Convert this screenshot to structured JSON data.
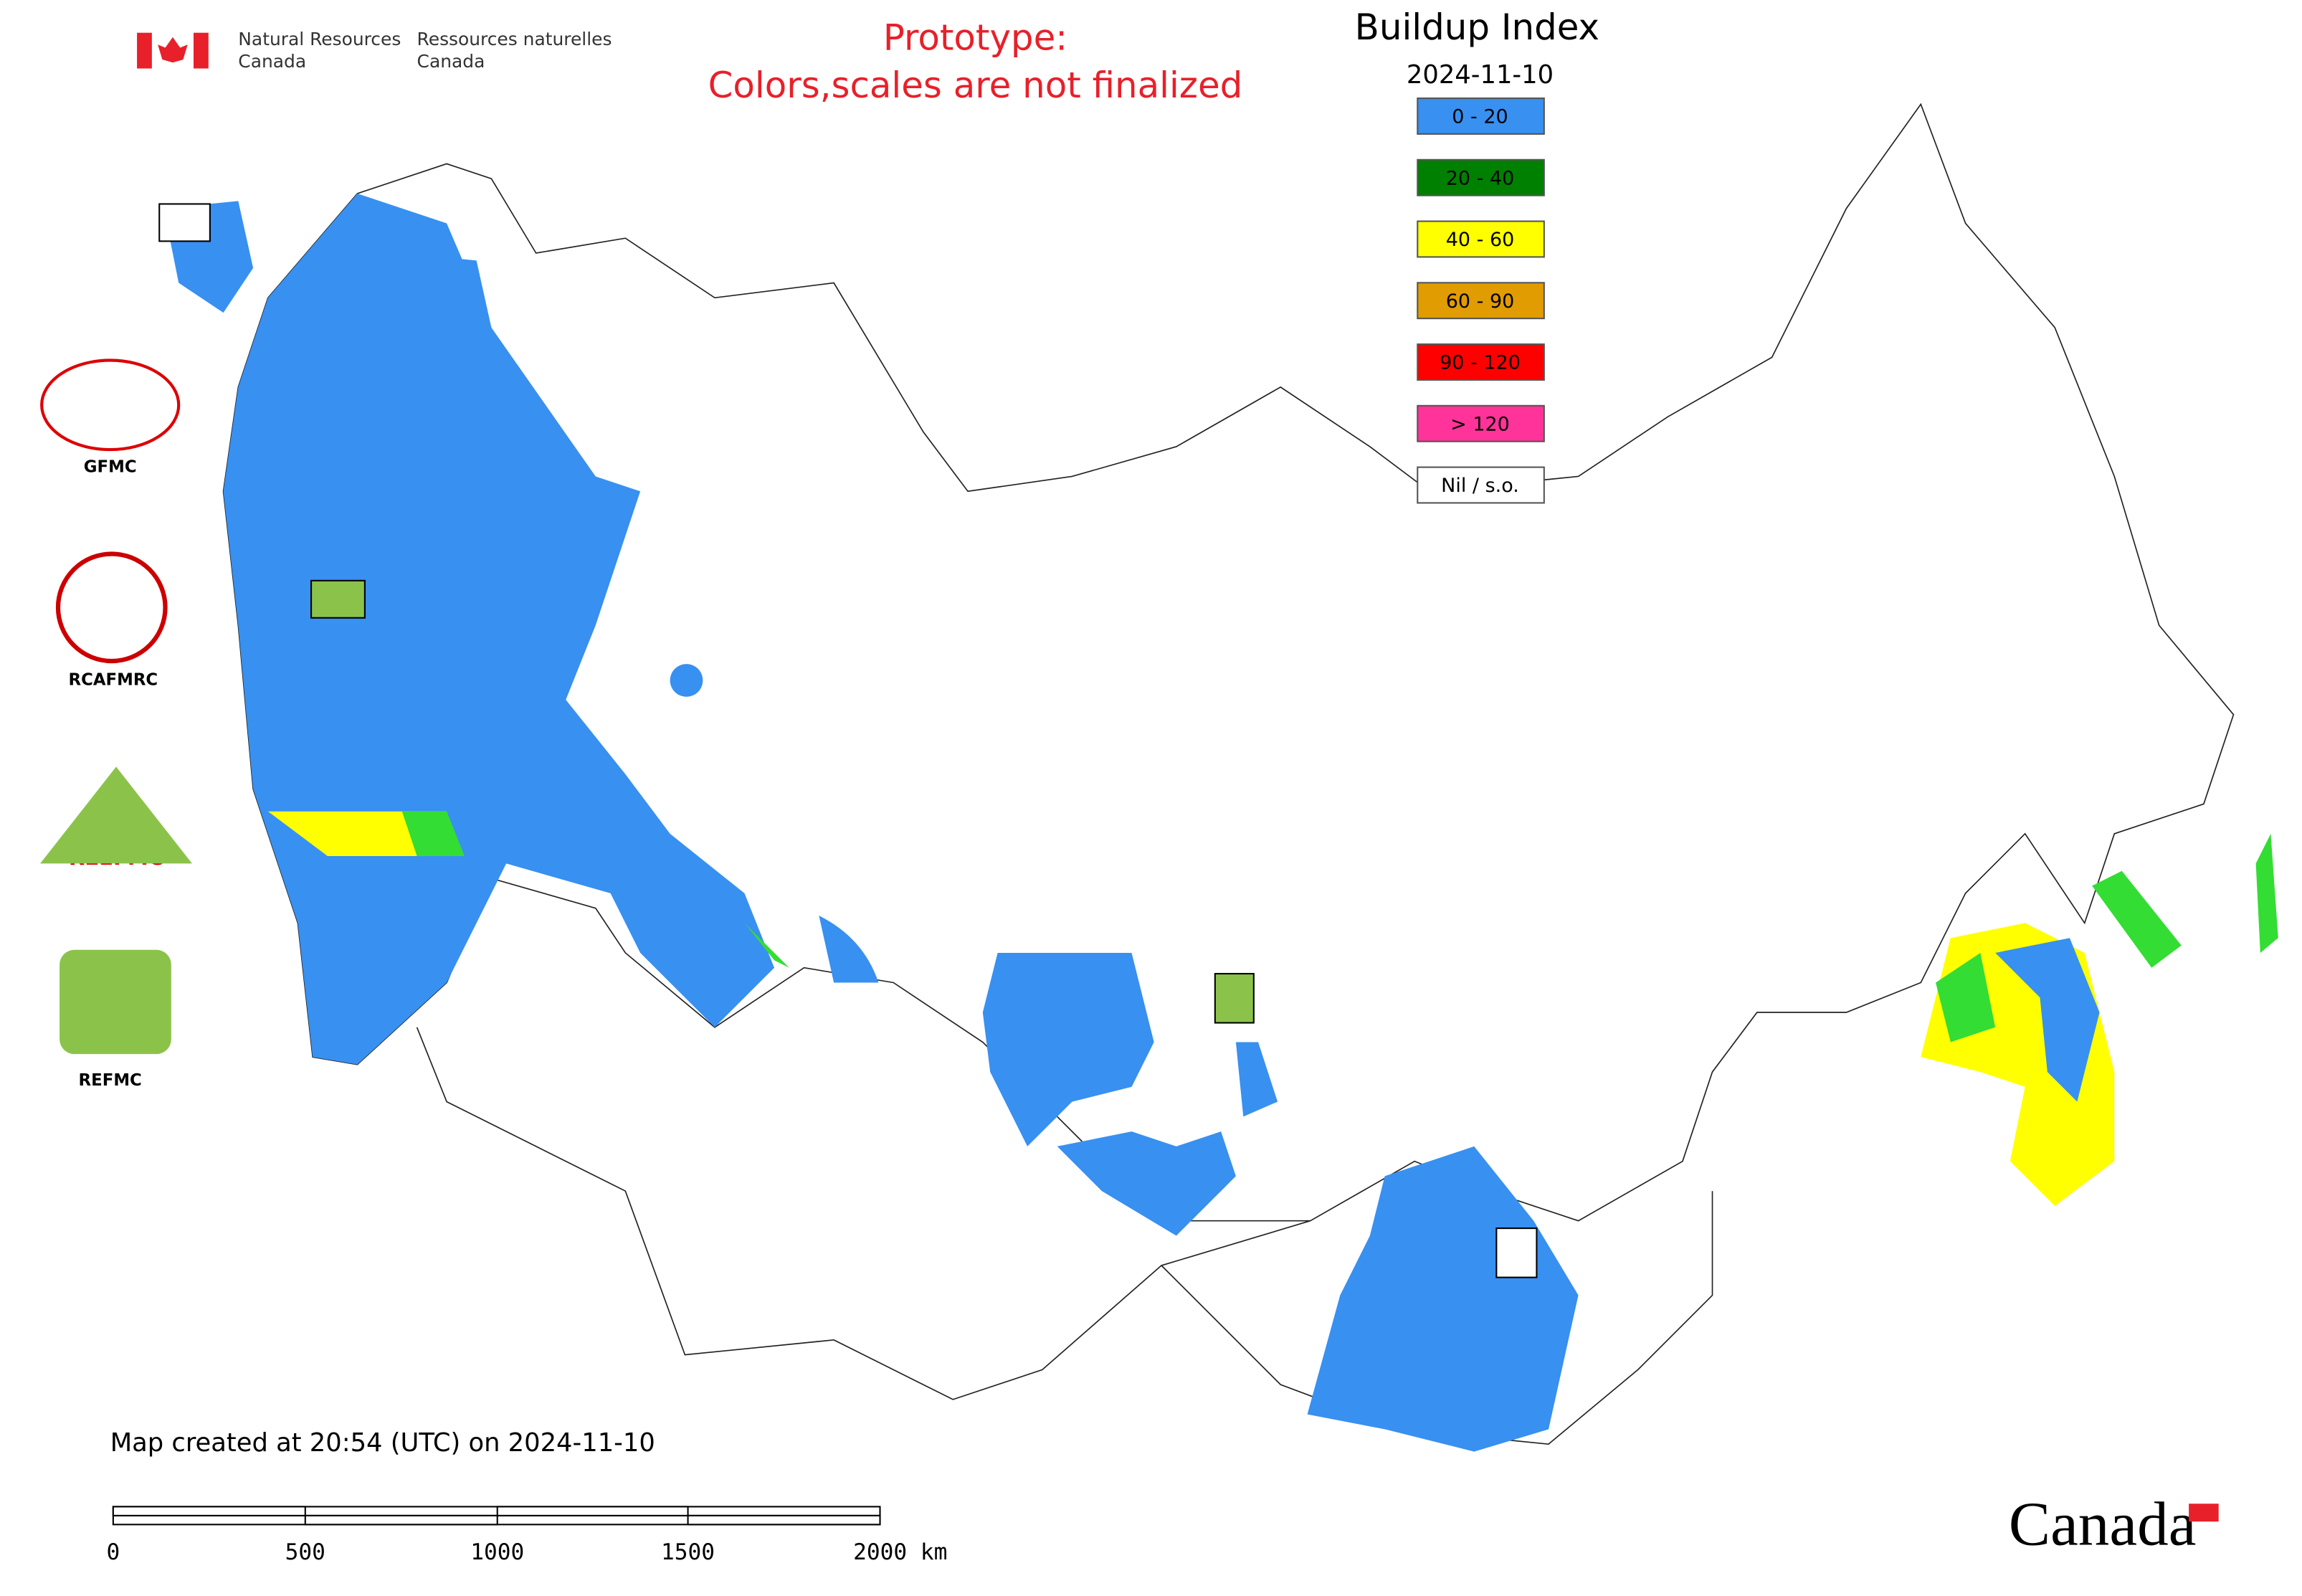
{
  "header": {
    "agency_en": [
      "Natural Resources",
      "Canada"
    ],
    "agency_fr": [
      "Ressources naturelles",
      "Canada"
    ],
    "notice": [
      "Prototype:",
      "Colors,scales are not finalized"
    ]
  },
  "map": {
    "title": "Buildup Index",
    "date": "2024-11-10",
    "legend": [
      {
        "label": "0 - 20",
        "color": "#3890f0"
      },
      {
        "label": "20 - 40",
        "color": "#008000"
      },
      {
        "label": "40 - 60",
        "color": "#ffff00"
      },
      {
        "label": "60 - 90",
        "color": "#e09c00"
      },
      {
        "label": "90 - 120",
        "color": "#ff0000"
      },
      {
        "label": "> 120",
        "color": "#ff3399"
      },
      {
        "label": "Nil / s.o.",
        "color": "#ffffff"
      }
    ],
    "logos": [
      "GFMC",
      "RCAFMRC",
      "REEFMC",
      "REFMC"
    ],
    "footer": "Map created at 20:54 (UTC) on 2024-11-10",
    "scale": [
      "0",
      "500",
      "1000",
      "1500",
      "2000 km"
    ],
    "wordmark": "Canada"
  }
}
